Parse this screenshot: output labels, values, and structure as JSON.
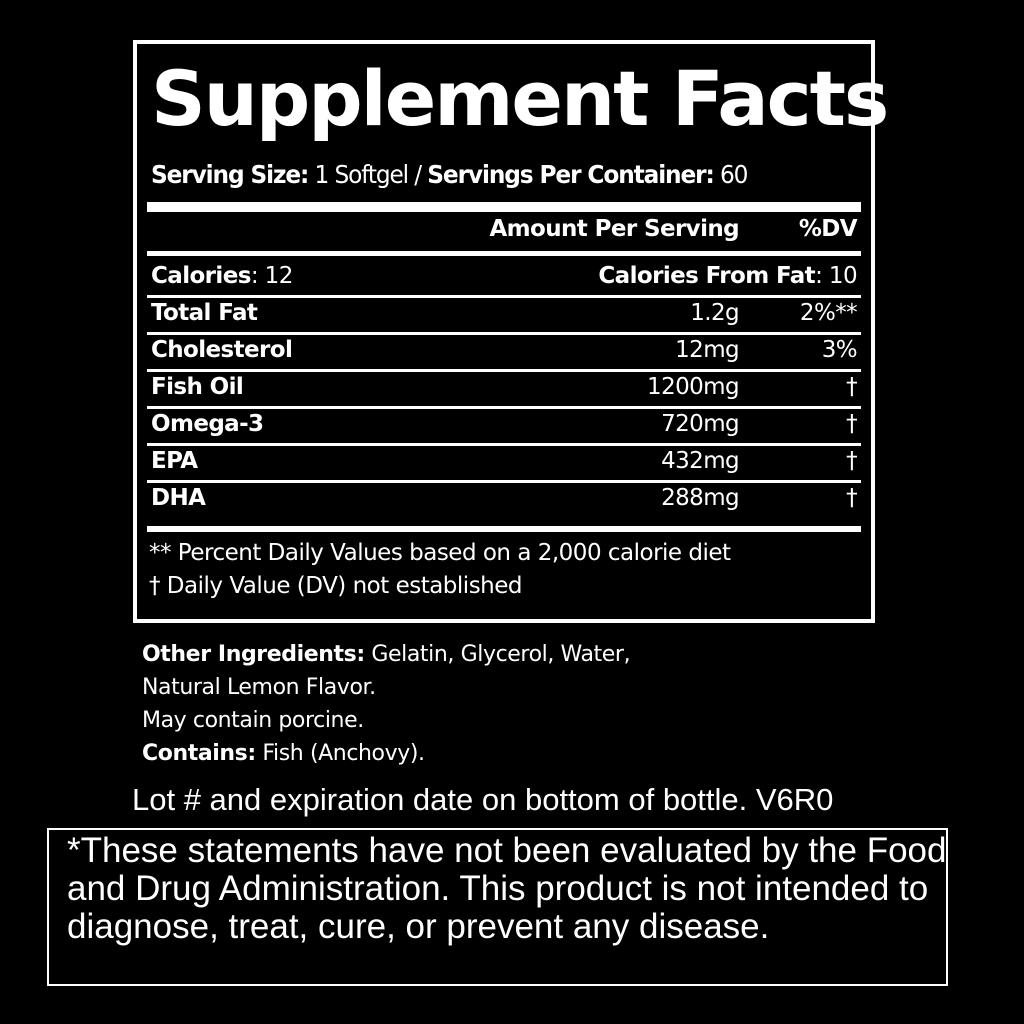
{
  "title": "Supplement Facts",
  "serving": {
    "size_label": "Serving Size:",
    "size_value": " 1 Softgel / ",
    "servings_label": "Servings Per Container:",
    "servings_value": " 60"
  },
  "header": {
    "amount": "Amount Per Serving",
    "dv": "%DV"
  },
  "calories": {
    "label": "Calories",
    "value": ": 12",
    "fat_label": "Calories From Fat",
    "fat_value": ": 10"
  },
  "rows": [
    {
      "name": "Total Fat",
      "amount": "1.2g",
      "dv": "2%**"
    },
    {
      "name": "Cholesterol",
      "amount": "12mg",
      "dv": "3%"
    },
    {
      "name": "Fish Oil",
      "amount": "1200mg",
      "dv": "†"
    },
    {
      "name": "Omega-3",
      "amount": "720mg",
      "dv": "†"
    },
    {
      "name": "EPA",
      "amount": "432mg",
      "dv": "†"
    },
    {
      "name": "DHA",
      "amount": "288mg",
      "dv": "†"
    }
  ],
  "footnotes": [
    "** Percent Daily Values based on a 2,000 calorie diet",
    "† Daily Value (DV) not established"
  ],
  "ingredients": {
    "label": "Other Ingredients:",
    "line1": " Gelatin, Glycerol, Water,",
    "line2": "Natural Lemon Flavor.",
    "line3": "May contain porcine.",
    "contains_label": "Contains:",
    "contains_value": " Fish (Anchovy)."
  },
  "lot": "Lot # and expiration date on bottom of bottle.  V6R0",
  "disclaimer": "*These statements have not been evaluated by the Food and Drug Administration. This product is not intended to diagnose, treat, cure, or prevent any disease."
}
